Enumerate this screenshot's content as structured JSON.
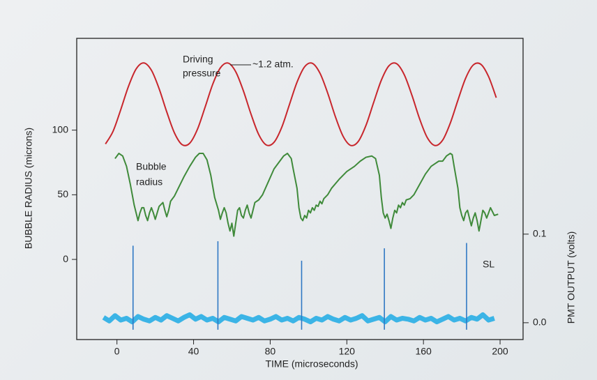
{
  "chart_data": {
    "type": "line",
    "x_label": "TIME (microseconds)",
    "y_label": "BUBBLE RADIUS (microns)",
    "y2_label": "PMT OUTPUT (volts)",
    "xlim": [
      -21,
      212
    ],
    "xticks": [
      0,
      40,
      80,
      120,
      160,
      200
    ],
    "ylim": [
      -62,
      171
    ],
    "yticks": [
      0,
      50,
      100
    ],
    "y2lim": [
      -0.019,
      0.321
    ],
    "y2ticks": [
      {
        "value": 0,
        "label": "0.0"
      },
      0.1
    ],
    "annotations": [
      "Driving",
      "pressure",
      "~1.2 atm.",
      "Bubble",
      "radius",
      "SL"
    ],
    "series": [
      {
        "color": "#c8262c",
        "smooth": true,
        "x": [
          -6,
          -2,
          2,
          6,
          10,
          14,
          18,
          22,
          26,
          30,
          34,
          38,
          42,
          46,
          50,
          54,
          58,
          62,
          66,
          70,
          74,
          78,
          82,
          86,
          90,
          94,
          98,
          102,
          106,
          110,
          114,
          118,
          122,
          126,
          130,
          134,
          138,
          142,
          146,
          150,
          154,
          158,
          162,
          166,
          170,
          174,
          178,
          182,
          186,
          190,
          194,
          198
        ],
        "values": [
          89.3,
          99.2,
          115.9,
          133.8,
          147.3,
          152.0,
          146.3,
          132.1,
          114.1,
          97.9,
          88.8,
          89.9,
          100.6,
          117.7,
          135.5,
          148.2,
          151.9,
          145.2,
          130.4,
          112.3,
          96.6,
          88.5,
          90.6,
          102.1,
          119.6,
          137.1,
          149.1,
          151.7,
          144.0,
          128.7,
          110.5,
          95.4,
          88.2,
          91.3,
          103.7,
          121.4,
          138.6,
          149.8,
          151.4,
          142.8,
          126.9,
          108.7,
          94.2,
          88.1,
          92.2,
          105.4,
          123.2,
          140.1,
          150.4,
          150.9,
          141.4,
          125.1
        ]
      },
      {
        "color": "#3f8a3a",
        "smooth": false,
        "x": [
          -1,
          1,
          3,
          5,
          7,
          9,
          10,
          11,
          12,
          13,
          14,
          15,
          16,
          17,
          18,
          19,
          20,
          21,
          22,
          24,
          25,
          26,
          27,
          28,
          30,
          32,
          35,
          38,
          41,
          43,
          45,
          47,
          49,
          51,
          53,
          54,
          55,
          56,
          57,
          58,
          59,
          60,
          61,
          62,
          63,
          64,
          65,
          66,
          67,
          68,
          69,
          70,
          71,
          72,
          74,
          76,
          79,
          82,
          85,
          87,
          89,
          91,
          92,
          94,
          95,
          96,
          97,
          98,
          99,
          100,
          101,
          102,
          103,
          104,
          105,
          106,
          107,
          108,
          110,
          112,
          116,
          120,
          124,
          127,
          130,
          133,
          135,
          137,
          138,
          139,
          140,
          141,
          142,
          143,
          144,
          145,
          146,
          147,
          148,
          149,
          150,
          151,
          153,
          155,
          158,
          161,
          164,
          166,
          168,
          170,
          172,
          174,
          175,
          176,
          178,
          179,
          180,
          181,
          182,
          183,
          184,
          185,
          186,
          187,
          188,
          189,
          190,
          191,
          192,
          193,
          194,
          195,
          196,
          197,
          199
        ],
        "values": [
          78,
          82,
          80,
          72,
          58,
          42,
          36,
          30,
          36,
          40,
          40,
          34,
          30,
          36,
          40,
          36,
          31,
          36,
          41,
          44,
          38,
          33,
          38,
          45,
          49,
          55,
          64,
          72,
          79,
          82,
          82,
          77,
          65,
          48,
          38,
          31,
          36,
          40,
          36,
          28,
          22,
          28,
          18,
          28,
          38,
          40,
          34,
          32,
          38,
          42,
          36,
          32,
          38,
          44,
          46,
          50,
          60,
          70,
          76,
          80,
          82,
          78,
          70,
          55,
          40,
          32,
          30,
          34,
          32,
          38,
          36,
          40,
          38,
          42,
          41,
          45,
          43,
          47,
          50,
          55,
          62,
          68,
          72,
          76,
          79,
          80,
          78,
          65,
          48,
          36,
          32,
          35,
          30,
          24,
          32,
          38,
          36,
          42,
          40,
          44,
          42,
          46,
          47,
          50,
          58,
          66,
          72,
          74,
          76,
          76,
          80,
          82,
          81,
          72,
          55,
          40,
          34,
          30,
          36,
          38,
          32,
          26,
          32,
          36,
          30,
          22,
          30,
          38,
          36,
          32,
          36,
          40,
          37,
          34,
          35
        ]
      },
      {
        "color": "#3bb4e6",
        "axis": "y2",
        "mode": "band",
        "x": [
          -7,
          -4,
          -1,
          2,
          5,
          8,
          11,
          14,
          17,
          20,
          23,
          26,
          29,
          32,
          35,
          38,
          41,
          44,
          47,
          50,
          53,
          56,
          59,
          62,
          65,
          68,
          71,
          74,
          77,
          80,
          83,
          86,
          89,
          92,
          95,
          98,
          101,
          104,
          107,
          110,
          113,
          116,
          119,
          122,
          125,
          128,
          131,
          134,
          137,
          140,
          143,
          146,
          149,
          152,
          155,
          158,
          161,
          164,
          167,
          170,
          173,
          176,
          179,
          182,
          185,
          188,
          191,
          194,
          197
        ],
        "values": [
          0.006,
          0.002,
          0.008,
          0.003,
          0.005,
          0.001,
          0.007,
          0.004,
          0.002,
          0.006,
          0.003,
          0.008,
          0.005,
          0.002,
          0.006,
          0.009,
          0.004,
          0.007,
          0.003,
          0.005,
          0.001,
          0.006,
          0.004,
          0.002,
          0.007,
          0.005,
          0.003,
          0.006,
          0.002,
          0.004,
          0.007,
          0.003,
          0.005,
          0.002,
          0.006,
          0.004,
          0.001,
          0.005,
          0.003,
          0.007,
          0.004,
          0.002,
          0.006,
          0.003,
          0.005,
          0.008,
          0.002,
          0.004,
          0.006,
          0.001,
          0.007,
          0.003,
          0.005,
          0.004,
          0.002,
          0.006,
          0.003,
          0.005,
          0.001,
          0.004,
          0.007,
          0.003,
          0.005,
          0.002,
          0.006,
          0.004,
          0.009,
          0.003,
          0.005
        ]
      },
      {
        "color": "#2f78c4",
        "axis": "y2",
        "mode": "spikes",
        "x": [
          8.4,
          52.7,
          96.4,
          139.6,
          182.5
        ],
        "values": [
          0.087,
          0.092,
          0.07,
          0.084,
          0.09
        ]
      }
    ]
  }
}
